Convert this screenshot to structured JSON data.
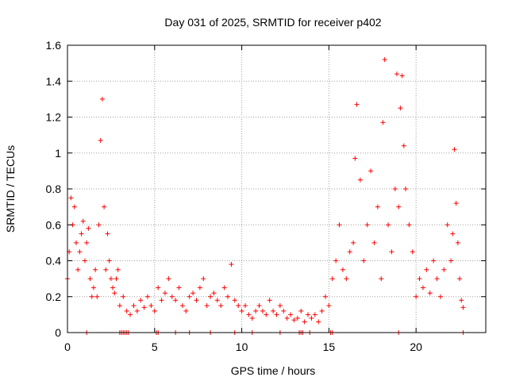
{
  "chart_data": {
    "type": "scatter",
    "title": "Day 031 of 2025, SRMTID for receiver p402",
    "xlabel": "GPS time / hours",
    "ylabel": "SRMTID / TECUs",
    "xlim": [
      0,
      24
    ],
    "ylim": [
      0,
      1.6
    ],
    "x_ticks": [
      0,
      5,
      10,
      15,
      20
    ],
    "x_tick_labels": [
      "0",
      "5",
      "10",
      "15",
      "20"
    ],
    "y_ticks": [
      0,
      0.2,
      0.4,
      0.6,
      0.8,
      1.0,
      1.2,
      1.4,
      1.6
    ],
    "y_tick_labels": [
      "0",
      "0.2",
      "0.4",
      "0.6",
      "0.8",
      "1",
      "1.2",
      "1.4",
      "1.6"
    ],
    "grid": true,
    "marker": "+",
    "series": [
      {
        "name": "SRMTID",
        "color": "#ff0000",
        "x": [
          0.0,
          0.1,
          0.2,
          0.3,
          0.4,
          0.5,
          0.6,
          0.7,
          0.8,
          0.9,
          1.0,
          1.1,
          1.2,
          1.3,
          1.4,
          1.5,
          1.6,
          1.7,
          1.8,
          1.9,
          2.0,
          2.1,
          2.2,
          2.3,
          2.4,
          2.5,
          2.6,
          2.7,
          2.8,
          2.9,
          3.0,
          3.2,
          3.4,
          3.6,
          3.8,
          4.0,
          4.2,
          4.4,
          4.6,
          4.8,
          5.0,
          5.2,
          5.4,
          5.6,
          5.8,
          6.0,
          6.2,
          6.4,
          6.6,
          6.8,
          7.0,
          7.2,
          7.4,
          7.6,
          7.8,
          8.0,
          8.2,
          8.4,
          8.6,
          8.8,
          9.0,
          9.2,
          9.4,
          9.6,
          9.8,
          10.0,
          10.2,
          10.4,
          10.6,
          10.8,
          11.0,
          11.2,
          11.4,
          11.6,
          11.8,
          12.0,
          12.2,
          12.4,
          12.6,
          12.8,
          13.0,
          13.2,
          13.4,
          13.6,
          13.8,
          14.0,
          14.2,
          14.4,
          14.6,
          14.8,
          15.0,
          15.2,
          15.4,
          15.6,
          15.8,
          16.0,
          16.2,
          16.4,
          16.5,
          16.6,
          16.8,
          17.0,
          17.2,
          17.4,
          17.6,
          17.8,
          18.0,
          18.1,
          18.2,
          18.4,
          18.6,
          18.8,
          18.9,
          19.0,
          19.1,
          19.2,
          19.3,
          19.4,
          19.6,
          19.8,
          20.0,
          20.2,
          20.4,
          20.6,
          20.8,
          21.0,
          21.2,
          21.4,
          21.6,
          21.8,
          22.0,
          22.1,
          22.2,
          22.3,
          22.4,
          22.5,
          22.6,
          22.7
        ],
        "y": [
          0.3,
          0.45,
          0.75,
          0.6,
          0.7,
          0.5,
          0.35,
          0.45,
          0.55,
          0.62,
          0.4,
          0.5,
          0.58,
          0.3,
          0.2,
          0.25,
          0.35,
          0.2,
          0.6,
          1.07,
          1.3,
          0.7,
          0.35,
          0.55,
          0.4,
          0.3,
          0.25,
          0.22,
          0.3,
          0.35,
          0.15,
          0.2,
          0.12,
          0.1,
          0.15,
          0.12,
          0.18,
          0.14,
          0.2,
          0.15,
          0.12,
          0.25,
          0.18,
          0.22,
          0.3,
          0.2,
          0.18,
          0.25,
          0.15,
          0.12,
          0.2,
          0.22,
          0.18,
          0.25,
          0.3,
          0.15,
          0.2,
          0.22,
          0.18,
          0.15,
          0.25,
          0.2,
          0.38,
          0.18,
          0.15,
          0.12,
          0.15,
          0.1,
          0.08,
          0.12,
          0.15,
          0.12,
          0.1,
          0.18,
          0.12,
          0.1,
          0.15,
          0.12,
          0.08,
          0.1,
          0.07,
          0.08,
          0.12,
          0.06,
          0.1,
          0.08,
          0.1,
          0.06,
          0.12,
          0.2,
          0.15,
          0.3,
          0.4,
          0.6,
          0.35,
          0.3,
          0.45,
          0.5,
          0.97,
          1.27,
          0.85,
          0.4,
          0.6,
          0.9,
          0.5,
          0.7,
          0.3,
          1.17,
          1.52,
          0.6,
          0.45,
          0.8,
          1.44,
          0.7,
          1.25,
          1.43,
          1.04,
          0.8,
          0.6,
          0.45,
          0.2,
          0.3,
          0.25,
          0.35,
          0.22,
          0.4,
          0.3,
          0.2,
          0.35,
          0.6,
          0.4,
          0.55,
          1.02,
          0.72,
          0.5,
          0.3,
          0.18,
          0.14
        ],
        "zero_markers_x": [
          1.1,
          3.0,
          3.1,
          3.2,
          3.3,
          3.4,
          3.5,
          5.1,
          5.2,
          6.2,
          7.0,
          8.2,
          9.6,
          10.6,
          12.2,
          13.3,
          13.4,
          13.5,
          13.9,
          15.1,
          15.2,
          19.0,
          22.7
        ]
      }
    ]
  }
}
